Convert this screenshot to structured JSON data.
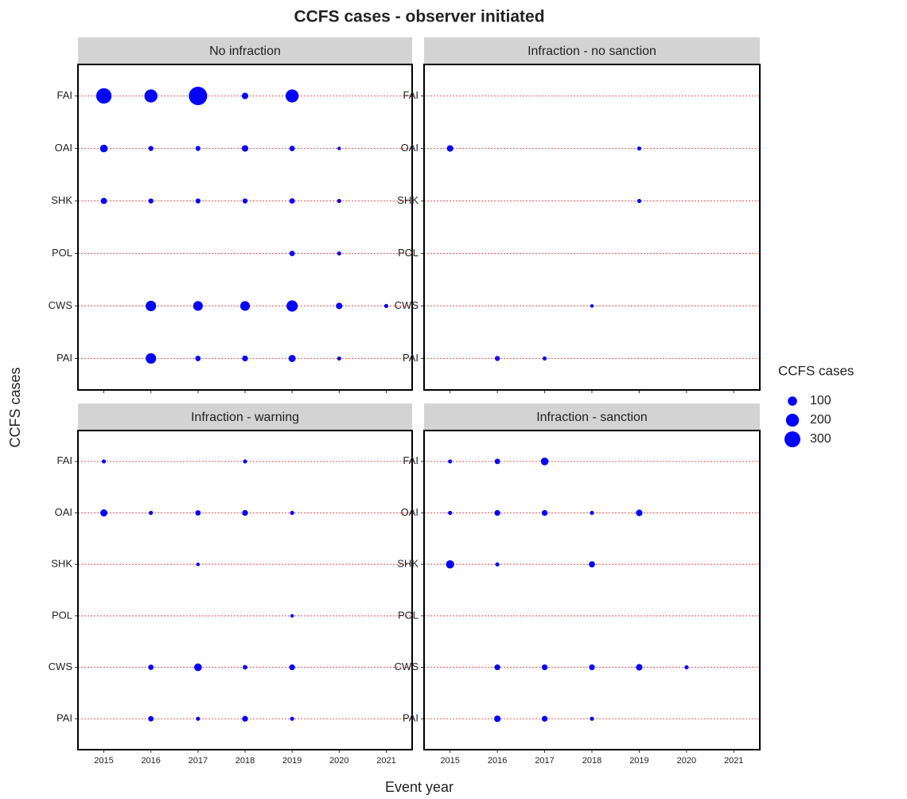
{
  "title": "CCFS cases - observer initiated",
  "x_label": "Event year",
  "y_label": "CCFS cases",
  "color": "#0000ff",
  "grid_color": "#ff6666",
  "legend": {
    "title": "CCFS cases",
    "values": [
      100,
      200,
      300
    ]
  },
  "chart_data": [
    {
      "type": "bubble",
      "title": "No infraction",
      "categories": [
        "FAI",
        "OAI",
        "SHK",
        "POL",
        "CWS",
        "PAI"
      ],
      "x": [
        2015,
        2016,
        2017,
        2018,
        2019,
        2020,
        2021
      ],
      "xlim": [
        2014.45,
        2021.55
      ],
      "grid": true,
      "sizes": [
        [
          280,
          200,
          400,
          50,
          200,
          null,
          null
        ],
        [
          70,
          30,
          30,
          50,
          35,
          15,
          null
        ],
        [
          45,
          30,
          30,
          30,
          35,
          20,
          null
        ],
        [
          null,
          null,
          null,
          null,
          35,
          20,
          null
        ],
        [
          null,
          130,
          110,
          110,
          150,
          50,
          20
        ],
        [
          null,
          130,
          35,
          40,
          60,
          20,
          null
        ]
      ]
    },
    {
      "type": "bubble",
      "title": "Infraction - no sanction",
      "categories": [
        "FAI",
        "OAI",
        "SHK",
        "POL",
        "CWS",
        "PAI"
      ],
      "x": [
        2015,
        2016,
        2017,
        2018,
        2019,
        2020,
        2021
      ],
      "xlim": [
        2014.45,
        2021.55
      ],
      "grid": true,
      "sizes": [
        [
          null,
          null,
          null,
          null,
          null,
          null,
          null
        ],
        [
          50,
          null,
          null,
          null,
          20,
          null,
          null
        ],
        [
          null,
          null,
          null,
          null,
          20,
          null,
          null
        ],
        [
          null,
          null,
          null,
          null,
          null,
          null,
          null
        ],
        [
          null,
          null,
          null,
          15,
          null,
          null,
          null
        ],
        [
          null,
          30,
          20,
          null,
          null,
          null,
          null
        ]
      ]
    },
    {
      "type": "bubble",
      "title": "Infraction - warning",
      "categories": [
        "FAI",
        "OAI",
        "SHK",
        "POL",
        "CWS",
        "PAI"
      ],
      "x": [
        2015,
        2016,
        2017,
        2018,
        2019,
        2020,
        2021
      ],
      "xlim": [
        2014.45,
        2021.55
      ],
      "grid": true,
      "sizes": [
        [
          20,
          null,
          null,
          20,
          null,
          null,
          null
        ],
        [
          60,
          20,
          35,
          40,
          20,
          null,
          null
        ],
        [
          null,
          null,
          15,
          null,
          null,
          null,
          null
        ],
        [
          null,
          null,
          null,
          null,
          15,
          null,
          null
        ],
        [
          null,
          35,
          70,
          25,
          40,
          null,
          null
        ],
        [
          null,
          35,
          20,
          40,
          20,
          null,
          null
        ]
      ]
    },
    {
      "type": "bubble",
      "title": "Infraction - sanction",
      "categories": [
        "FAI",
        "OAI",
        "SHK",
        "POL",
        "CWS",
        "PAI"
      ],
      "x": [
        2015,
        2016,
        2017,
        2018,
        2019,
        2020,
        2021
      ],
      "xlim": [
        2014.45,
        2021.55
      ],
      "grid": true,
      "sizes": [
        [
          20,
          35,
          70,
          null,
          null,
          null,
          null
        ],
        [
          20,
          40,
          40,
          20,
          50,
          null,
          null
        ],
        [
          80,
          20,
          null,
          45,
          null,
          null,
          null
        ],
        [
          null,
          null,
          null,
          null,
          null,
          null,
          null
        ],
        [
          null,
          40,
          40,
          40,
          50,
          20,
          null
        ],
        [
          null,
          50,
          40,
          20,
          null,
          null,
          null
        ]
      ]
    }
  ]
}
